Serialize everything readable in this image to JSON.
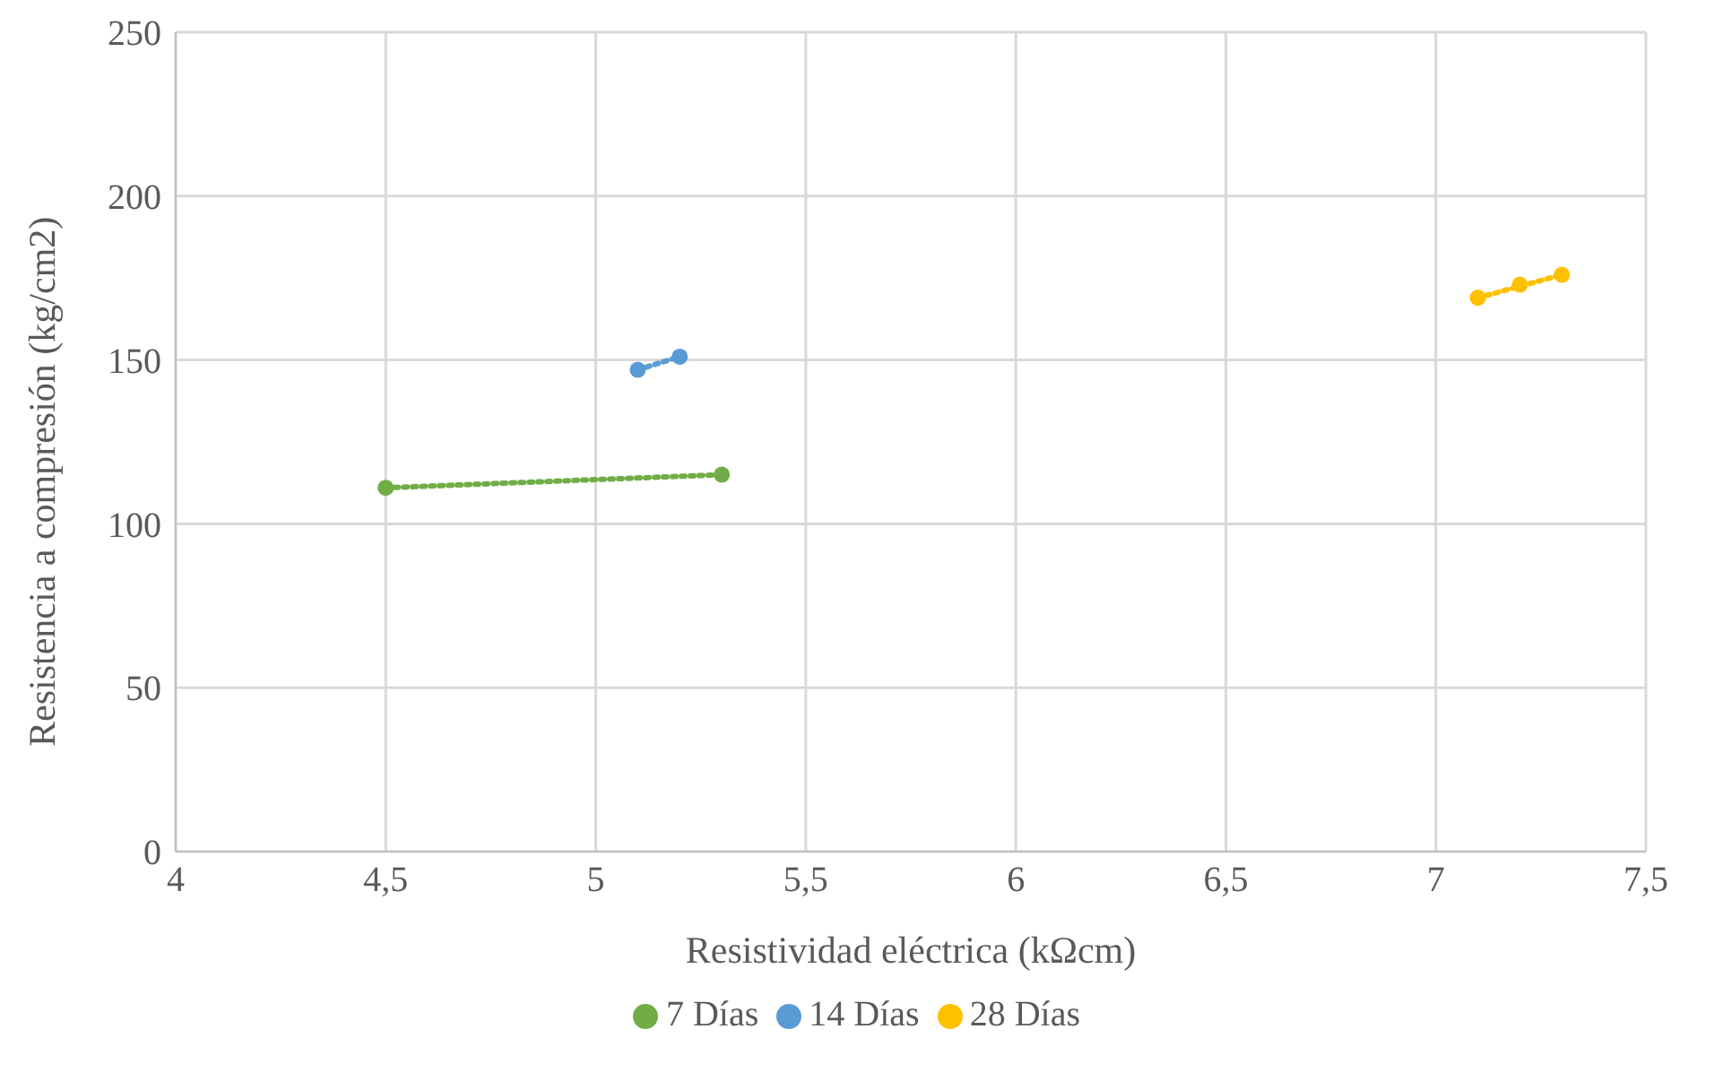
{
  "chart_data": {
    "type": "scatter",
    "xlabel": "Resistividad eléctrica (kΩcm)",
    "ylabel": "Resistencia a compresión (kg/cm2)",
    "xlim": [
      4,
      7.5
    ],
    "xticks": [
      4,
      {
        "value": 4.5,
        "label": "4,5"
      },
      5,
      {
        "value": 5.5,
        "label": "5,5"
      },
      6,
      {
        "value": 6.5,
        "label": "6,5"
      },
      7,
      {
        "value": 7.5,
        "label": "7,5"
      }
    ],
    "ylim": [
      0,
      250
    ],
    "yticks": [
      0,
      50,
      100,
      150,
      200,
      250
    ],
    "grid": true,
    "legend": "bottom",
    "marker": "circle",
    "series": [
      {
        "name": "7 Días",
        "color": "#70ad47",
        "x": [
          4.5,
          5.3
        ],
        "values": [
          111,
          115
        ]
      },
      {
        "name": "14 Días",
        "color": "#5b9bd5",
        "x": [
          5.1,
          5.2
        ],
        "values": [
          147,
          151
        ]
      },
      {
        "name": "28 Días",
        "color": "#ffc000",
        "x": [
          7.1,
          7.2,
          7.3
        ],
        "values": [
          169,
          173,
          176
        ]
      },
      {
        "type": "line",
        "line_style": "dotted",
        "marker": "none",
        "color": "#70ad47",
        "x": [
          4.5,
          5.3
        ],
        "values": [
          111,
          115
        ]
      },
      {
        "type": "line",
        "line_style": "dotted",
        "marker": "none",
        "color": "#5b9bd5",
        "x": [
          5.1,
          5.2
        ],
        "values": [
          147,
          151
        ]
      },
      {
        "type": "line",
        "line_style": "dotted",
        "marker": "none",
        "color": "#ffc000",
        "x": [
          7.1,
          7.3
        ],
        "values": [
          169,
          176
        ]
      }
    ]
  }
}
